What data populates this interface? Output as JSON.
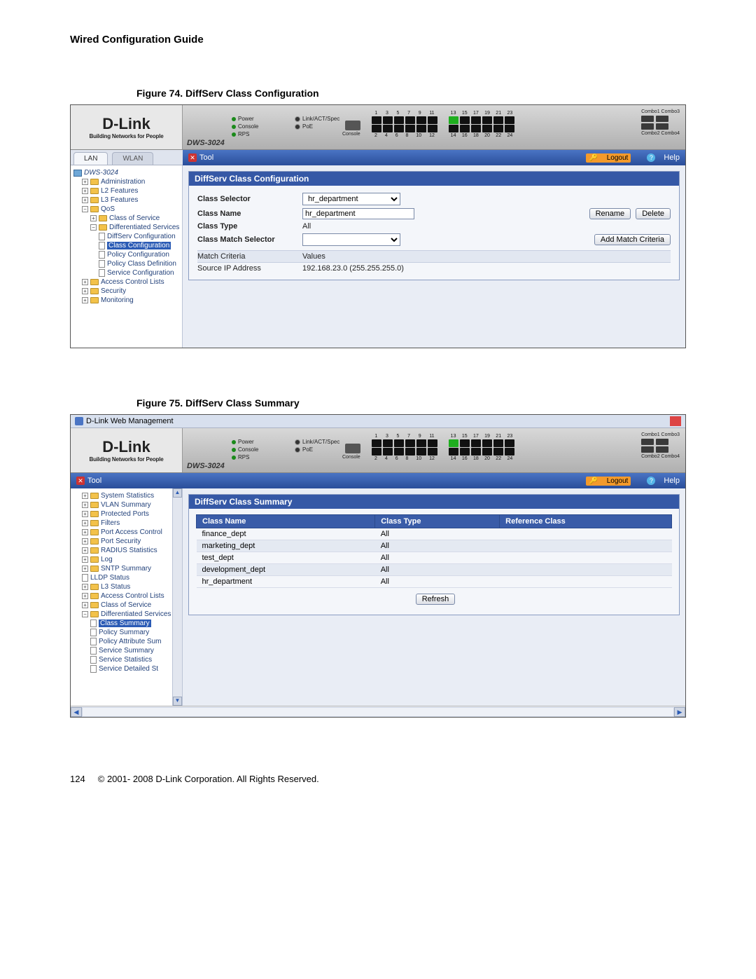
{
  "doc": {
    "header": "Wired Configuration Guide",
    "page_number": "124",
    "copyright": "© 2001- 2008 D-Link Corporation. All Rights Reserved."
  },
  "figure74": {
    "caption_label": "Figure 74.",
    "caption_body": "DiffServ Class Configuration",
    "logo": "D-Link",
    "logo_tagline": "Building Networks for People",
    "model": "DWS-3024",
    "leds": {
      "power": "Power",
      "console": "Console",
      "rps": "RPS",
      "linkact": "Link/ACT/Spec",
      "poe": "PoE"
    },
    "port_top_labels": [
      "1",
      "3",
      "5",
      "7",
      "9",
      "11",
      "13",
      "15",
      "17",
      "19",
      "21",
      "23"
    ],
    "port_bottom_labels": [
      "2",
      "4",
      "6",
      "8",
      "10",
      "12",
      "14",
      "16",
      "18",
      "20",
      "22",
      "24"
    ],
    "combo_top": "Combo1 Combo3",
    "combo_bottom": "Combo2 Combo4",
    "console_label": "Console",
    "toolbar": {
      "tool": "Tool",
      "logout": "Logout",
      "help": "Help"
    },
    "tabs": {
      "lan": "LAN",
      "wlan": "WLAN"
    },
    "tree": {
      "root": "DWS-3024",
      "items": [
        {
          "lvl": 2,
          "exp": "+",
          "label": "Administration"
        },
        {
          "lvl": 2,
          "exp": "+",
          "label": "L2 Features"
        },
        {
          "lvl": 2,
          "exp": "+",
          "label": "L3 Features"
        },
        {
          "lvl": 2,
          "exp": "−",
          "label": "QoS"
        },
        {
          "lvl": 3,
          "exp": "+",
          "label": "Class of Service"
        },
        {
          "lvl": 3,
          "exp": "−",
          "label": "Differentiated Services"
        },
        {
          "lvl": 4,
          "doc": true,
          "label": "DiffServ Configuration"
        },
        {
          "lvl": 4,
          "doc": true,
          "sel": true,
          "label": "Class Configuration"
        },
        {
          "lvl": 4,
          "doc": true,
          "label": "Policy Configuration"
        },
        {
          "lvl": 4,
          "doc": true,
          "label": "Policy Class Definition"
        },
        {
          "lvl": 4,
          "doc": true,
          "label": "Service Configuration"
        },
        {
          "lvl": 2,
          "exp": "+",
          "label": "Access Control Lists"
        },
        {
          "lvl": 2,
          "exp": "+",
          "label": "Security"
        },
        {
          "lvl": 2,
          "exp": "+",
          "label": "Monitoring"
        }
      ]
    },
    "panel_title": "DiffServ Class Configuration",
    "form": {
      "class_selector_label": "Class Selector",
      "class_selector_value": "hr_department",
      "class_name_label": "Class Name",
      "class_name_value": "hr_department",
      "class_type_label": "Class Type",
      "class_type_value": "All",
      "class_match_label": "Class Match Selector",
      "class_match_value": "",
      "rename": "Rename",
      "delete": "Delete",
      "add_match": "Add Match Criteria"
    },
    "criteria": {
      "head_left": "Match Criteria",
      "head_right": "Values",
      "row_left": "Source IP Address",
      "row_right": "192.168.23.0 (255.255.255.0)"
    }
  },
  "figure75": {
    "caption_label": "Figure 75.",
    "caption_body": "DiffServ Class Summary",
    "titlebar": "D-Link Web Management",
    "logo": "D-Link",
    "logo_tagline": "Building Networks for People",
    "model": "DWS-3024",
    "leds": {
      "power": "Power",
      "console": "Console",
      "rps": "RPS",
      "linkact": "Link/ACT/Spec",
      "poe": "PoE"
    },
    "combo_top": "Combo1 Combo3",
    "combo_bottom": "Combo2 Combo4",
    "console_label": "Console",
    "toolbar": {
      "tool": "Tool",
      "logout": "Logout",
      "help": "Help"
    },
    "tree": {
      "items": [
        {
          "lvl": 2,
          "exp": "+",
          "label": "System Statistics"
        },
        {
          "lvl": 2,
          "exp": "+",
          "label": "VLAN Summary"
        },
        {
          "lvl": 2,
          "exp": "+",
          "label": "Protected Ports"
        },
        {
          "lvl": 2,
          "exp": "+",
          "label": "Filters"
        },
        {
          "lvl": 2,
          "exp": "+",
          "label": "Port Access Control"
        },
        {
          "lvl": 2,
          "exp": "+",
          "label": "Port Security"
        },
        {
          "lvl": 2,
          "exp": "+",
          "label": "RADIUS Statistics"
        },
        {
          "lvl": 2,
          "exp": "+",
          "label": "Log"
        },
        {
          "lvl": 2,
          "exp": "+",
          "label": "SNTP Summary"
        },
        {
          "lvl": 2,
          "doc": true,
          "label": "LLDP Status"
        },
        {
          "lvl": 2,
          "exp": "+",
          "label": "L3 Status"
        },
        {
          "lvl": 2,
          "exp": "+",
          "label": "Access Control Lists"
        },
        {
          "lvl": 2,
          "exp": "+",
          "label": "Class of Service"
        },
        {
          "lvl": 2,
          "exp": "−",
          "label": "Differentiated Services"
        },
        {
          "lvl": 3,
          "doc": true,
          "sel": true,
          "label": "Class Summary"
        },
        {
          "lvl": 3,
          "doc": true,
          "label": "Policy Summary"
        },
        {
          "lvl": 3,
          "doc": true,
          "label": "Policy Attribute Sum"
        },
        {
          "lvl": 3,
          "doc": true,
          "label": "Service Summary"
        },
        {
          "lvl": 3,
          "doc": true,
          "label": "Service Statistics"
        },
        {
          "lvl": 3,
          "doc": true,
          "label": "Service Detailed St"
        }
      ]
    },
    "panel_title": "DiffServ Class Summary",
    "table": {
      "columns": [
        "Class Name",
        "Class Type",
        "Reference Class"
      ],
      "rows": [
        [
          "finance_dept",
          "All",
          ""
        ],
        [
          "marketing_dept",
          "All",
          ""
        ],
        [
          "test_dept",
          "All",
          ""
        ],
        [
          "development_dept",
          "All",
          ""
        ],
        [
          "hr_department",
          "All",
          ""
        ]
      ],
      "refresh": "Refresh"
    }
  }
}
